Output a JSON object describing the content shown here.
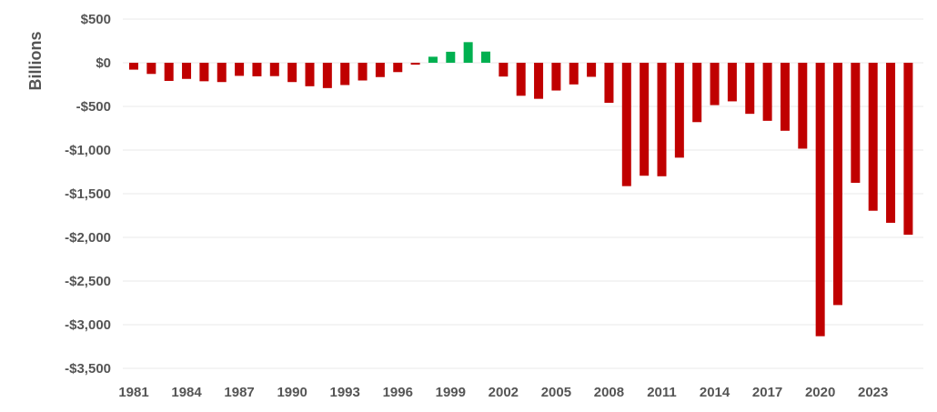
{
  "chart_data": {
    "type": "bar",
    "title": "",
    "xlabel": "",
    "ylabel": "Billions",
    "ylim": [
      -3500,
      500
    ],
    "y_ticks": [
      500,
      0,
      -500,
      -1000,
      -1500,
      -2000,
      -2500,
      -3000,
      -3500
    ],
    "y_tick_labels": [
      "$500",
      "$0",
      "-$500",
      "-$1,000",
      "-$1,500",
      "-$2,000",
      "-$2,500",
      "-$3,000",
      "-$3,500"
    ],
    "x_tick_labels": [
      "1981",
      "1984",
      "1987",
      "1990",
      "1993",
      "1996",
      "1999",
      "2002",
      "2005",
      "2008",
      "2011",
      "2014",
      "2017",
      "2020",
      "2023"
    ],
    "grid": "horizontal",
    "colors": {
      "deficit": "#c00000",
      "surplus": "#00b050",
      "grid": "#e8e8e8",
      "text": "#555555"
    },
    "categories": [
      "1981",
      "1982",
      "1983",
      "1984",
      "1985",
      "1986",
      "1987",
      "1988",
      "1989",
      "1990",
      "1991",
      "1992",
      "1993",
      "1994",
      "1995",
      "1996",
      "1997",
      "1998",
      "1999",
      "2000",
      "2001",
      "2002",
      "2003",
      "2004",
      "2005",
      "2006",
      "2007",
      "2008",
      "2009",
      "2010",
      "2011",
      "2012",
      "2013",
      "2014",
      "2015",
      "2016",
      "2017",
      "2018",
      "2019",
      "2020",
      "2021",
      "2022",
      "2023",
      "2024",
      "2025"
    ],
    "values": [
      -79,
      -128,
      -208,
      -185,
      -212,
      -221,
      -150,
      -155,
      -153,
      -221,
      -269,
      -290,
      -255,
      -203,
      -164,
      -107,
      -22,
      69,
      126,
      236,
      128,
      -158,
      -378,
      -413,
      -318,
      -248,
      -161,
      -459,
      -1413,
      -1294,
      -1300,
      -1087,
      -680,
      -485,
      -442,
      -585,
      -665,
      -779,
      -984,
      -3132,
      -2775,
      -1375,
      -1695,
      -1833,
      -1970
    ]
  }
}
